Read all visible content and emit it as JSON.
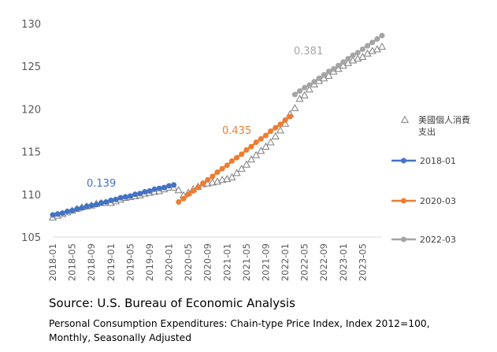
{
  "chart_data": {
    "type": "line",
    "ylim": [
      105,
      130
    ],
    "yticks": [
      105,
      110,
      115,
      120,
      125,
      130
    ],
    "xtick_labels": [
      "2018-01",
      "2018-05",
      "2018-09",
      "2019-01",
      "2019-05",
      "2019-09",
      "2020-01",
      "2020-05",
      "2020-09",
      "2021-01",
      "2021-05",
      "2021-09",
      "2022-01",
      "2022-05",
      "2022-09",
      "2023-01",
      "2023-05"
    ],
    "grid": false,
    "legend_position": "right",
    "start_month": "2018-01",
    "series": [
      {
        "name": "美國個人消費支出",
        "marker": "triangle",
        "color": "#7f7f7f",
        "values": [
          107.3,
          107.5,
          107.7,
          107.9,
          108.1,
          108.3,
          108.5,
          108.6,
          108.7,
          108.9,
          109.0,
          109.0,
          109.0,
          109.2,
          109.4,
          109.6,
          109.7,
          109.8,
          109.9,
          110.1,
          110.2,
          110.3,
          110.4,
          110.6,
          110.8,
          110.8,
          110.5,
          109.9,
          110.2,
          110.6,
          110.9,
          111.2,
          111.3,
          111.4,
          111.5,
          111.7,
          111.8,
          112.0,
          112.5,
          113.0,
          113.5,
          114.1,
          114.6,
          115.1,
          115.6,
          116.1,
          116.8,
          117.5,
          118.3,
          119.4,
          120.1,
          121.2,
          121.6,
          122.3,
          122.9,
          123.3,
          123.6,
          123.9,
          124.4,
          124.7,
          125.1,
          125.4,
          125.7,
          125.9,
          126.1,
          126.5,
          126.8,
          127.0,
          127.3
        ]
      },
      {
        "name": "2018-01",
        "color": "#4472c4",
        "slope_label": "0.139",
        "start_index": 0,
        "values": [
          107.6,
          107.7,
          107.8,
          108.0,
          108.1,
          108.3,
          108.4,
          108.6,
          108.7,
          108.8,
          109.0,
          109.1,
          109.3,
          109.4,
          109.6,
          109.7,
          109.8,
          110.0,
          110.1,
          110.3,
          110.4,
          110.6,
          110.7,
          110.8,
          111.0,
          111.1
        ]
      },
      {
        "name": "2020-03",
        "color": "#ed7d31",
        "slope_label": "0.435",
        "start_index": 26,
        "values": [
          109.1,
          109.5,
          110.0,
          110.4,
          110.8,
          111.3,
          111.7,
          112.1,
          112.6,
          113.0,
          113.4,
          113.9,
          114.3,
          114.7,
          115.2,
          115.6,
          116.1,
          116.5,
          116.9,
          117.4,
          117.8,
          118.2,
          118.7,
          119.1
        ]
      },
      {
        "name": "2022-03",
        "color": "#a5a5a5",
        "slope_label": "0.381",
        "start_index": 50,
        "values": [
          121.7,
          122.1,
          122.5,
          122.8,
          123.2,
          123.6,
          124.0,
          124.4,
          124.7,
          125.1,
          125.5,
          125.9,
          126.3,
          126.6,
          127.0,
          127.4,
          127.8,
          128.2,
          128.6
        ]
      }
    ]
  },
  "source": "Source: U.S. Bureau of Economic Analysis",
  "note": "Personal Consumption Expenditures: Chain-type Price Index, Index 2012=100, Monthly, Seasonally Adjusted"
}
